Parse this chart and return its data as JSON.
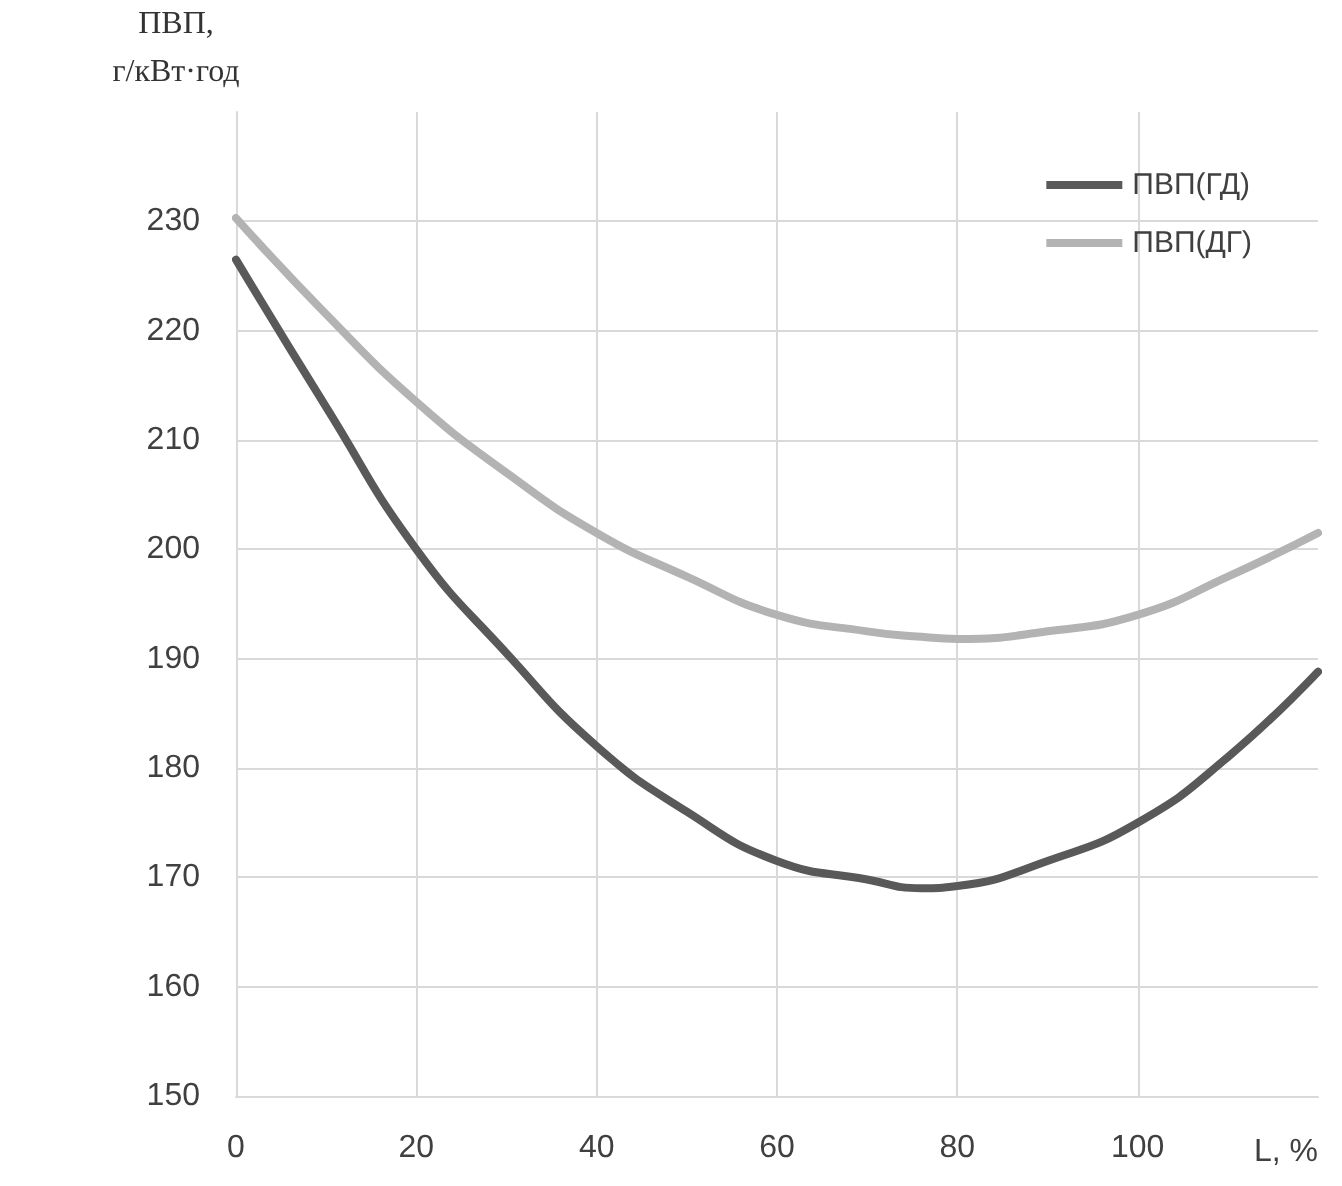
{
  "chart_data": {
    "type": "line",
    "xlabel": "L, %",
    "ylabel": "ПВП,\nг/кВт·год",
    "x": [
      0,
      10,
      20,
      30,
      40,
      50,
      60,
      70,
      76,
      80,
      90,
      100,
      110,
      120
    ],
    "series": [
      {
        "name": "ПВП(ГД)",
        "color": "#595959",
        "values": [
          226.5,
          213,
          200,
          190.5,
          182,
          176,
          171.5,
          169.8,
          169,
          169.2,
          171.5,
          175,
          181,
          188.8
        ]
      },
      {
        "name": "ПВП(ДГ)",
        "color": "#b3b3b3",
        "values": [
          230.3,
          221.5,
          213.5,
          207,
          201.5,
          197.5,
          194,
          192.5,
          192,
          191.8,
          192.5,
          194,
          197.5,
          201.5
        ]
      }
    ],
    "xlim": [
      0,
      120
    ],
    "xticks": [
      0,
      20,
      40,
      60,
      80,
      100
    ],
    "ylim": [
      150,
      240
    ],
    "yticks": [
      150,
      160,
      170,
      180,
      190,
      200,
      210,
      220,
      230
    ],
    "grid": true,
    "legend": "top right",
    "marker": "none",
    "line_style": "solid"
  }
}
